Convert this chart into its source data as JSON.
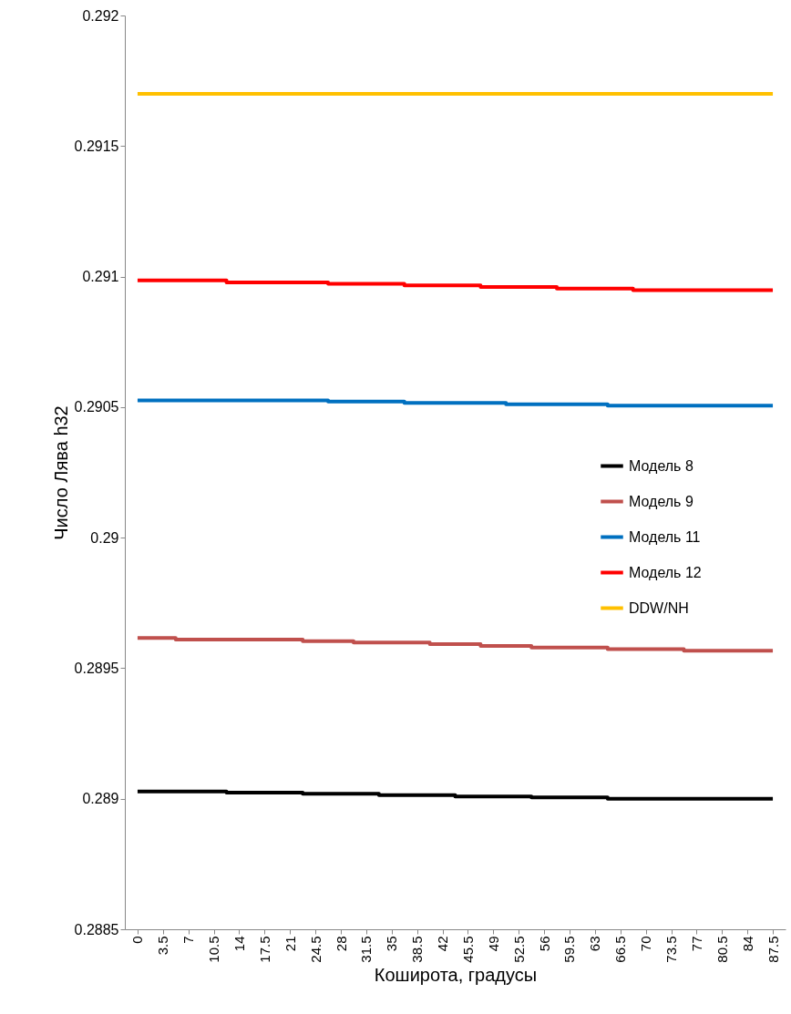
{
  "chart_data": {
    "type": "step",
    "xlabel": "Коширота, градусы",
    "ylabel": "Число Лява h32",
    "categories": [
      "0",
      "3.5",
      "7",
      "10.5",
      "14",
      "17.5",
      "21",
      "24.5",
      "28",
      "31.5",
      "35",
      "38.5",
      "42",
      "45.5",
      "49",
      "52.5",
      "56",
      "59.5",
      "63",
      "66.5",
      "70",
      "73.5",
      "77",
      "80.5",
      "84",
      "87.5"
    ],
    "series": [
      {
        "name": "Модель 8",
        "color": "#000000",
        "values": [
          0.289028,
          0.289028,
          0.289028,
          0.289028,
          0.289023,
          0.289023,
          0.289023,
          0.289019,
          0.289019,
          0.289019,
          0.289014,
          0.289014,
          0.289014,
          0.289009,
          0.289009,
          0.289009,
          0.289005,
          0.289005,
          0.289005,
          0.289,
          0.289,
          0.289,
          0.289,
          0.289,
          0.289,
          0.289
        ]
      },
      {
        "name": "Модель 9",
        "color": "#c0504d",
        "values": [
          0.289616,
          0.289616,
          0.28961,
          0.28961,
          0.28961,
          0.28961,
          0.28961,
          0.289604,
          0.289604,
          0.289598,
          0.289598,
          0.289598,
          0.289592,
          0.289592,
          0.289585,
          0.289585,
          0.289579,
          0.289579,
          0.289579,
          0.289573,
          0.289573,
          0.289573,
          0.289567,
          0.289567,
          0.289567,
          0.289567
        ]
      },
      {
        "name": "Модель 11",
        "color": "#0070c0",
        "values": [
          0.290526,
          0.290526,
          0.290526,
          0.290526,
          0.290526,
          0.290526,
          0.290526,
          0.290526,
          0.290521,
          0.290521,
          0.290521,
          0.290516,
          0.290516,
          0.290516,
          0.290516,
          0.290511,
          0.290511,
          0.290511,
          0.290511,
          0.290506,
          0.290506,
          0.290506,
          0.290506,
          0.290506,
          0.290506,
          0.290506
        ]
      },
      {
        "name": "Модель 12",
        "color": "#ff0000",
        "values": [
          0.290985,
          0.290985,
          0.290985,
          0.290985,
          0.290978,
          0.290978,
          0.290978,
          0.290978,
          0.290972,
          0.290972,
          0.290972,
          0.290966,
          0.290966,
          0.290966,
          0.29096,
          0.29096,
          0.29096,
          0.290954,
          0.290954,
          0.290954,
          0.290948,
          0.290948,
          0.290948,
          0.290948,
          0.290948,
          0.290948
        ]
      },
      {
        "name": "DDW/NH",
        "color": "#ffc000",
        "values": [
          0.2917,
          0.2917,
          0.2917,
          0.2917,
          0.2917,
          0.2917,
          0.2917,
          0.2917,
          0.2917,
          0.2917,
          0.2917,
          0.2917,
          0.2917,
          0.2917,
          0.2917,
          0.2917,
          0.2917,
          0.2917,
          0.2917,
          0.2917,
          0.2917,
          0.2917,
          0.2917,
          0.2917,
          0.2917,
          0.2917
        ]
      }
    ],
    "ylim": [
      0.2885,
      0.292
    ],
    "yticks": [
      0.2885,
      0.289,
      0.2895,
      0.29,
      0.2905,
      0.291,
      0.2915,
      0.292
    ],
    "grid": false,
    "legend": "right",
    "line_style": "solid",
    "marker": "none"
  }
}
